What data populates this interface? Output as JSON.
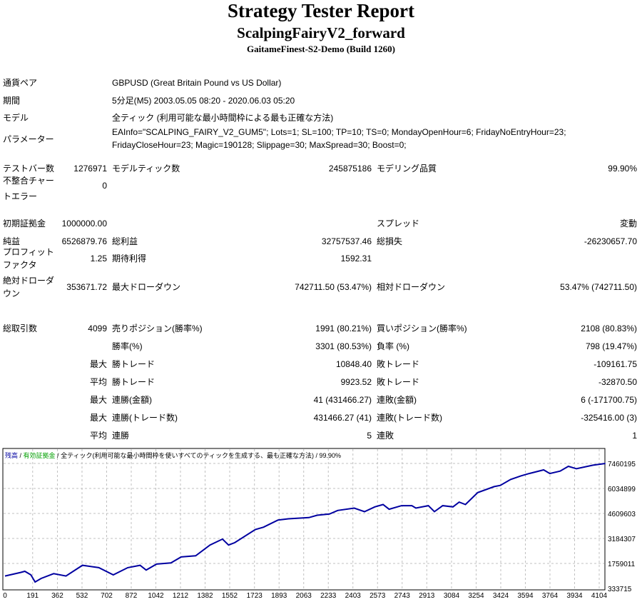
{
  "header": {
    "title": "Strategy Tester Report",
    "subtitle": "ScalpingFairyV2_forward",
    "server": "GaitameFinest-S2-Demo (Build 1260)"
  },
  "info": [
    {
      "label": "通貨ペア",
      "value": "GBPUSD (Great Britain Pound vs US Dollar)"
    },
    {
      "label": "期間",
      "value": "5分足(M5) 2003.05.05 08:20 - 2020.06.03 05:20"
    },
    {
      "label": "モデル",
      "value": "全ティック (利用可能な最小時間枠による最も正確な方法)"
    },
    {
      "label": "パラメーター",
      "value": "EAInfo=\"SCALPING_FAIRY_V2_GUM5\"; Lots=1; SL=100; TP=10; TS=0; MondayOpenHour=6; FridayNoEntryHour=23; FridayCloseHour=23; Magic=190128; Slippage=30; MaxSpread=30; Boost=0;"
    }
  ],
  "stats": [
    [
      "テストバー数",
      "1276971",
      "モデルティック数",
      "245875186",
      "モデリング品質",
      "99.90%"
    ],
    [
      "不整合チャートエラー",
      "0",
      "",
      "",
      "",
      ""
    ],
    [
      "初期証拠金",
      "1000000.00",
      "",
      "",
      "スプレッド",
      "変動"
    ],
    [
      "純益",
      "6526879.76",
      "総利益",
      "32757537.46",
      "総損失",
      "-26230657.70"
    ],
    [
      "プロフィットファクタ",
      "1.25",
      "期待利得",
      "1592.31",
      "",
      ""
    ],
    [
      "絶対ドローダウン",
      "353671.72",
      "最大ドローダウン",
      "742711.50 (53.47%)",
      "相対ドローダウン",
      "53.47% (742711.50)"
    ],
    [
      "総取引数",
      "4099",
      "売りポジション(勝率%)",
      "1991 (80.21%)",
      "買いポジション(勝率%)",
      "2108 (80.83%)"
    ],
    [
      "",
      "",
      "勝率(%)",
      "3301 (80.53%)",
      "負率 (%)",
      "798 (19.47%)"
    ],
    [
      "",
      "最大",
      "勝トレード",
      "10848.40",
      "敗トレード",
      "-109161.75"
    ],
    [
      "",
      "平均",
      "勝トレード",
      "9923.52",
      "敗トレード",
      "-32870.50"
    ],
    [
      "",
      "最大",
      "連勝(金額)",
      "41 (431466.27)",
      "連敗(金額)",
      "6 (-171700.75)"
    ],
    [
      "",
      "最大",
      "連勝(トレード数)",
      "431466.27 (41)",
      "連敗(トレード数)",
      "-325416.00 (3)"
    ],
    [
      "",
      "平均",
      "連勝",
      "5",
      "連敗",
      "1"
    ]
  ],
  "chart_data": {
    "type": "line",
    "legend": {
      "balance": "残高",
      "equity": "有効証拠金",
      "model": "全ティック(利用可能な最小時間枠を使いすべてのティックを生成する、最も正確な方法)",
      "quality": "99.90%",
      "separator": " / "
    },
    "colors": {
      "balance": "#0000a0",
      "equity": "#00a000",
      "grid": "#c0c0c0"
    },
    "x_ticks": [
      "0",
      "191",
      "362",
      "532",
      "702",
      "872",
      "1042",
      "1212",
      "1382",
      "1552",
      "1723",
      "1893",
      "2063",
      "2233",
      "2403",
      "2573",
      "2743",
      "2913",
      "3084",
      "3254",
      "3424",
      "3594",
      "3764",
      "3934",
      "4104"
    ],
    "y_ticks": [
      "7460195",
      "6034899",
      "4609603",
      "3184307",
      "1759011",
      "333715"
    ],
    "xlim": [
      0,
      4170
    ],
    "ylim": [
      333715,
      8430000
    ],
    "grid": true,
    "series": [
      {
        "x": [
          0,
          108,
          137,
          179,
          208,
          250,
          336,
          421,
          535,
          648,
          748,
          848,
          933,
          975,
          1047,
          1146,
          1217,
          1317,
          1416,
          1502,
          1544,
          1587,
          1729,
          1786,
          1886,
          1957,
          2099,
          2156,
          2241,
          2298,
          2412,
          2483,
          2554,
          2611,
          2653,
          2739,
          2810,
          2838,
          2924,
          2966,
          3023,
          3094,
          3137,
          3180,
          3265,
          3379,
          3421,
          3492,
          3563,
          3620,
          3720,
          3763,
          3834,
          3891,
          3947,
          4061,
          4147
        ],
        "y": [
          1040811,
          1244781,
          1312771,
          1108801,
          700861,
          904831,
          1174791,
          1040811,
          1652721,
          1516741,
          1108801,
          1516741,
          1652721,
          1380761,
          1720711,
          1788701,
          2128651,
          2196641,
          2808551,
          3148501,
          2808551,
          2944531,
          3692421,
          3828401,
          4236341,
          4304331,
          4372321,
          4508301,
          4576291,
          4780261,
          4916241,
          4712271,
          4984231,
          5120211,
          4848251,
          5052221,
          5052221,
          4916241,
          5052221,
          4712271,
          5052221,
          4984231,
          5256191,
          5120211,
          5800111,
          6140061,
          6208051,
          6548001,
          6751971,
          6887951,
          7091921,
          6887951,
          7023931,
          7295891,
          7159911,
          7363881,
          7459071
        ]
      }
    ]
  }
}
